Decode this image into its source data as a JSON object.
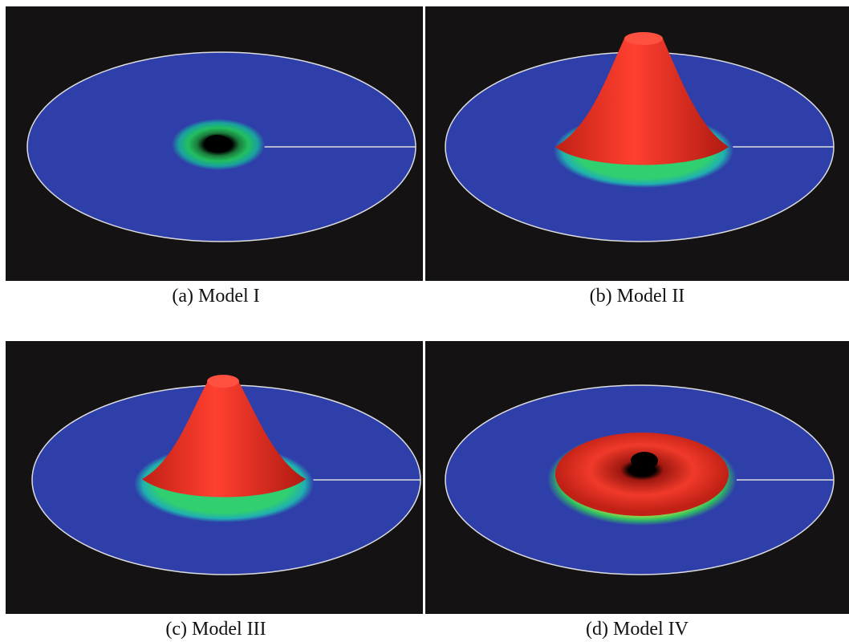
{
  "figure": {
    "panels": [
      {
        "caption": "(a) Model I"
      },
      {
        "caption": "(b) Model II"
      },
      {
        "caption": "(c) Model III"
      },
      {
        "caption": "(d) Model IV"
      }
    ]
  }
}
